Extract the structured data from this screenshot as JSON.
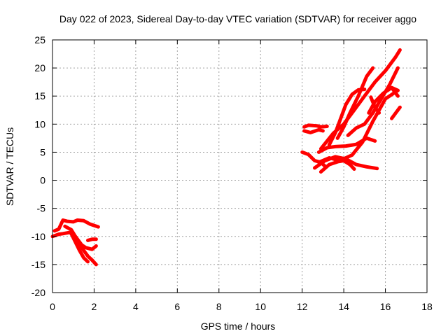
{
  "chart_data": {
    "type": "scatter",
    "title": "Day 022 of 2023, Sidereal Day-to-day VTEC variation (SDTVAR) for receiver aggo",
    "xlabel": "GPS time / hours",
    "ylabel": "SDTVAR / TECUs",
    "xlim": [
      0,
      18
    ],
    "ylim": [
      -20,
      25
    ],
    "xticks": [
      "0",
      "2",
      "4",
      "6",
      "8",
      "10",
      "12",
      "14",
      "16",
      "18"
    ],
    "yticks": [
      "-20",
      "-15",
      "-10",
      "-5",
      "0",
      "5",
      "10",
      "15",
      "20",
      "25"
    ],
    "grid": true,
    "series_color": "#ff0000",
    "tracks": [
      {
        "x": [
          0.0,
          0.3,
          0.5,
          0.8,
          1.0
        ],
        "y": [
          -10.0,
          -9.6,
          -9.5,
          -9.3,
          -9.5
        ]
      },
      {
        "x": [
          0.1,
          0.3,
          0.5,
          0.7,
          1.0,
          1.2,
          1.5,
          1.8,
          2.2
        ],
        "y": [
          -9.0,
          -8.7,
          -7.1,
          -7.3,
          -7.4,
          -7.1,
          -7.2,
          -7.8,
          -8.3
        ]
      },
      {
        "x": [
          0.6,
          0.9,
          1.1,
          1.4,
          1.6,
          1.9,
          2.1
        ],
        "y": [
          -8.2,
          -8.8,
          -10.0,
          -11.5,
          -12.0,
          -12.3,
          -11.7
        ]
      },
      {
        "x": [
          0.9,
          1.1,
          1.3,
          1.5,
          1.7
        ],
        "y": [
          -9.5,
          -11.0,
          -12.5,
          -13.8,
          -14.5
        ]
      },
      {
        "x": [
          1.1,
          1.4,
          1.7,
          1.9,
          2.1
        ],
        "y": [
          -10.5,
          -12.0,
          -13.5,
          -14.2,
          -15.0
        ]
      },
      {
        "x": [
          1.7,
          1.9,
          2.1
        ],
        "y": [
          -10.7,
          -10.5,
          -10.5
        ]
      },
      {
        "x": [
          12.0,
          12.3,
          12.6,
          12.9,
          13.1
        ],
        "y": [
          5.0,
          4.6,
          3.5,
          3.2,
          2.5
        ]
      },
      {
        "x": [
          12.1,
          12.3,
          12.7,
          12.9,
          13.2
        ],
        "y": [
          9.5,
          9.8,
          9.7,
          9.5,
          9.6
        ]
      },
      {
        "x": [
          12.1,
          12.4,
          12.8,
          13.0
        ],
        "y": [
          8.8,
          8.5,
          9.0,
          8.8
        ]
      },
      {
        "x": [
          12.8,
          13.3,
          13.8,
          14.4,
          14.9,
          15.4,
          16.0,
          16.6
        ],
        "y": [
          3.2,
          4.0,
          3.5,
          4.5,
          6.8,
          10.5,
          14.5,
          16.0
        ]
      },
      {
        "x": [
          12.9,
          13.3,
          13.7,
          14.0,
          14.3,
          14.5
        ],
        "y": [
          1.5,
          2.8,
          3.3,
          3.5,
          2.8,
          2.0
        ]
      },
      {
        "x": [
          12.6,
          13.1,
          13.6,
          14.1,
          14.6,
          15.1,
          15.6
        ],
        "y": [
          2.2,
          3.5,
          4.2,
          3.8,
          2.8,
          2.4,
          2.1
        ]
      },
      {
        "x": [
          12.8,
          13.2,
          13.6,
          14.1,
          14.6,
          15.1,
          15.5
        ],
        "y": [
          5.0,
          5.8,
          6.0,
          6.1,
          6.4,
          7.5,
          7.0
        ]
      },
      {
        "x": [
          12.9,
          13.2,
          13.5,
          14.0,
          14.5,
          15.0,
          15.5,
          16.0,
          16.5,
          16.7
        ],
        "y": [
          5.6,
          7.0,
          8.4,
          10.0,
          12.5,
          15.0,
          17.5,
          19.5,
          22.0,
          23.2
        ]
      },
      {
        "x": [
          13.3,
          13.6,
          13.8,
          14.1,
          14.4,
          14.7,
          15.0
        ],
        "y": [
          6.3,
          8.5,
          10.5,
          13.5,
          15.3,
          16.1,
          16.2
        ]
      },
      {
        "x": [
          13.7,
          14.0,
          14.3,
          14.7,
          15.1,
          15.4
        ],
        "y": [
          7.5,
          9.5,
          12.0,
          15.0,
          18.5,
          20.0
        ]
      },
      {
        "x": [
          14.2,
          14.6,
          15.0,
          15.4,
          15.8,
          16.2,
          16.6
        ],
        "y": [
          8.0,
          9.3,
          10.0,
          12.0,
          14.5,
          17.0,
          20.0
        ]
      },
      {
        "x": [
          15.2,
          15.5,
          15.9,
          16.3,
          16.6
        ],
        "y": [
          12.0,
          14.0,
          15.5,
          16.5,
          16.0
        ]
      },
      {
        "x": [
          16.1,
          16.3,
          16.6
        ],
        "y": [
          16.0,
          16.5,
          15.0
        ]
      },
      {
        "x": [
          16.3,
          16.5,
          16.7
        ],
        "y": [
          11.0,
          12.0,
          13.0
        ]
      },
      {
        "x": [
          15.3,
          15.5,
          15.7
        ],
        "y": [
          14.8,
          13.0,
          12.0
        ]
      }
    ]
  }
}
